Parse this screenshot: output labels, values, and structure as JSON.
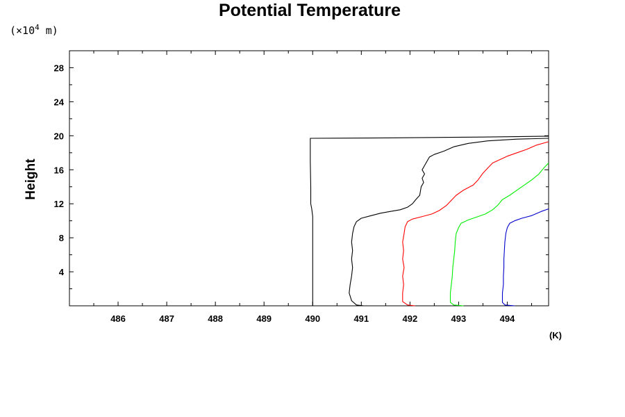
{
  "chart_data": {
    "type": "line",
    "title": "Potential Temperature",
    "ylabel": "Height",
    "y_unit": "(×10",
    "y_unit_exp": "4",
    "y_unit_tail": " m)",
    "x_unit": "(K)",
    "xlim": [
      485.0,
      494.85
    ],
    "ylim": [
      0,
      30
    ],
    "x_ticks": [
      "486",
      "487",
      "488",
      "489",
      "490",
      "491",
      "492",
      "493",
      "494"
    ],
    "y_ticks": [
      "4",
      "8",
      "12",
      "16",
      "20",
      "24",
      "28"
    ],
    "grid": false,
    "series": [
      {
        "color": "#000000",
        "points": [
          [
            490.0,
            0
          ],
          [
            490.0,
            5
          ],
          [
            490.0,
            10.5
          ],
          [
            489.98,
            11.4
          ],
          [
            489.96,
            12
          ],
          [
            489.96,
            14
          ],
          [
            489.95,
            17
          ],
          [
            489.95,
            19.7
          ],
          [
            490.5,
            19.72
          ],
          [
            491.5,
            19.75
          ],
          [
            492.5,
            19.8
          ],
          [
            493.5,
            19.85
          ],
          [
            494.85,
            19.95
          ]
        ]
      },
      {
        "color": "#000000",
        "points": [
          [
            491.05,
            0
          ],
          [
            490.9,
            0.1
          ],
          [
            490.8,
            0.6
          ],
          [
            490.75,
            1.5
          ],
          [
            490.77,
            2.5
          ],
          [
            490.8,
            3.5
          ],
          [
            490.82,
            4.5
          ],
          [
            490.8,
            5.5
          ],
          [
            490.82,
            6.5
          ],
          [
            490.8,
            7.5
          ],
          [
            490.82,
            8.5
          ],
          [
            490.85,
            9.3
          ],
          [
            490.9,
            9.9
          ],
          [
            491.0,
            10.3
          ],
          [
            491.2,
            10.6
          ],
          [
            491.4,
            10.9
          ],
          [
            491.6,
            11.1
          ],
          [
            491.8,
            11.3
          ],
          [
            491.95,
            11.6
          ],
          [
            492.05,
            12
          ],
          [
            492.12,
            12.5
          ],
          [
            492.2,
            13
          ],
          [
            492.23,
            14
          ],
          [
            492.28,
            14.5
          ],
          [
            492.25,
            15
          ],
          [
            492.3,
            15.5
          ],
          [
            492.25,
            16
          ],
          [
            492.3,
            16.5
          ],
          [
            492.35,
            17
          ],
          [
            492.4,
            17.5
          ],
          [
            492.5,
            17.8
          ],
          [
            492.7,
            18.2
          ],
          [
            492.9,
            18.7
          ],
          [
            493.2,
            19.1
          ],
          [
            493.6,
            19.4
          ],
          [
            494.2,
            19.6
          ],
          [
            494.85,
            19.7
          ]
        ]
      },
      {
        "color": "#ff0000",
        "points": [
          [
            492.1,
            0
          ],
          [
            491.95,
            0.1
          ],
          [
            491.85,
            0.5
          ],
          [
            491.85,
            1.5
          ],
          [
            491.87,
            2.5
          ],
          [
            491.85,
            3.5
          ],
          [
            491.88,
            4.5
          ],
          [
            491.85,
            5.5
          ],
          [
            491.87,
            6.5
          ],
          [
            491.85,
            7.5
          ],
          [
            491.88,
            8.5
          ],
          [
            491.9,
            9.3
          ],
          [
            491.95,
            9.9
          ],
          [
            492.05,
            10.2
          ],
          [
            492.25,
            10.5
          ],
          [
            492.45,
            10.8
          ],
          [
            492.6,
            11.2
          ],
          [
            492.75,
            11.8
          ],
          [
            492.85,
            12.4
          ],
          [
            492.95,
            13
          ],
          [
            493.1,
            13.6
          ],
          [
            493.3,
            14.2
          ],
          [
            493.4,
            14.8
          ],
          [
            493.5,
            15.6
          ],
          [
            493.6,
            16.2
          ],
          [
            493.7,
            16.8
          ],
          [
            493.85,
            17.2
          ],
          [
            494.0,
            17.6
          ],
          [
            494.2,
            18
          ],
          [
            494.4,
            18.4
          ],
          [
            494.6,
            18.9
          ],
          [
            494.85,
            19.3
          ]
        ]
      },
      {
        "color": "#00ee00",
        "points": [
          [
            493.1,
            0
          ],
          [
            492.9,
            0.1
          ],
          [
            492.83,
            0.4
          ],
          [
            492.83,
            1.5
          ],
          [
            492.85,
            2.5
          ],
          [
            492.87,
            3.5
          ],
          [
            492.88,
            4.5
          ],
          [
            492.9,
            5.5
          ],
          [
            492.92,
            6.5
          ],
          [
            492.93,
            7.5
          ],
          [
            492.95,
            8.5
          ],
          [
            493.0,
            9.2
          ],
          [
            493.05,
            9.7
          ],
          [
            493.2,
            10.1
          ],
          [
            493.4,
            10.5
          ],
          [
            493.55,
            10.8
          ],
          [
            493.7,
            11.3
          ],
          [
            493.8,
            11.8
          ],
          [
            493.9,
            12.5
          ],
          [
            494.05,
            13
          ],
          [
            494.2,
            13.6
          ],
          [
            494.35,
            14.2
          ],
          [
            494.5,
            14.8
          ],
          [
            494.65,
            15.5
          ],
          [
            494.75,
            16.2
          ],
          [
            494.85,
            16.8
          ]
        ]
      },
      {
        "color": "#0000cc",
        "points": [
          [
            494.15,
            0
          ],
          [
            493.95,
            0.1
          ],
          [
            493.9,
            0.4
          ],
          [
            493.9,
            1.5
          ],
          [
            493.92,
            2.5
          ],
          [
            493.92,
            3.5
          ],
          [
            493.93,
            4.5
          ],
          [
            493.93,
            5.5
          ],
          [
            493.94,
            6.5
          ],
          [
            493.95,
            7.5
          ],
          [
            493.97,
            8.5
          ],
          [
            494.0,
            9.2
          ],
          [
            494.05,
            9.7
          ],
          [
            494.15,
            10.0
          ],
          [
            494.3,
            10.3
          ],
          [
            494.5,
            10.6
          ],
          [
            494.7,
            11.1
          ],
          [
            494.85,
            11.4
          ]
        ]
      }
    ]
  }
}
